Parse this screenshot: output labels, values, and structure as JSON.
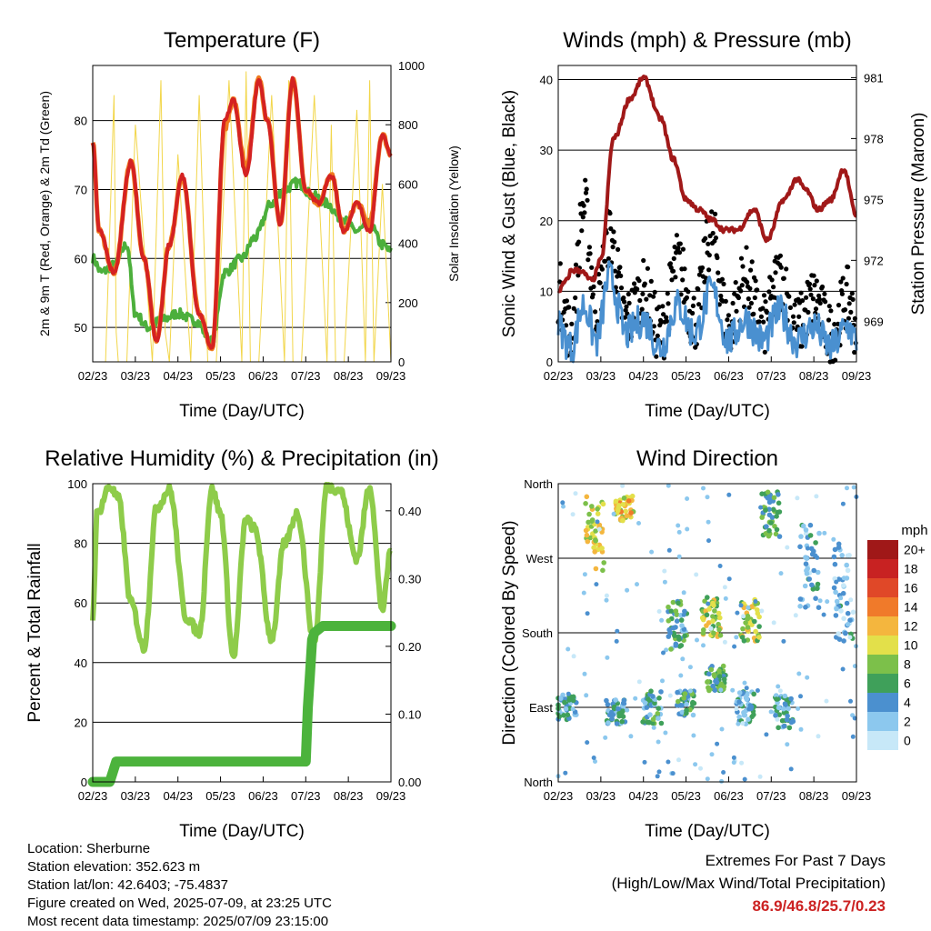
{
  "colors": {
    "temp2m": "#d42222",
    "temp9m": "#f07a1e",
    "dewpoint": "#4caf3c",
    "solar": "#f2d64a",
    "wind": "#4a90d0",
    "gust": "#000000",
    "pressure": "#a01818",
    "rh": "#8ecc4a",
    "precip": "#4cb33c"
  },
  "chart_data": [
    {
      "type": "line",
      "title": "Temperature (F)",
      "xlabel": "Time (Day/UTC)",
      "ylabel": "2m & 9m T (Red, Orange) & 2m Td (Green)",
      "ylabel_right": "Solar Insolation (Yellow)",
      "x_ticks": [
        "02/23",
        "03/23",
        "04/23",
        "05/23",
        "06/23",
        "07/23",
        "08/23",
        "09/23"
      ],
      "y_ticks": [
        50,
        60,
        70,
        80
      ],
      "y_right_ticks": [
        0,
        200,
        400,
        600,
        800,
        1000
      ],
      "ylim": [
        45,
        88
      ],
      "ylim_right": [
        0,
        1000
      ],
      "series": [
        {
          "key": "temp2m",
          "x": [
            0,
            0.15,
            0.5,
            0.9,
            1.2,
            1.5,
            1.8,
            2.1,
            2.5,
            2.8,
            3.1,
            3.3,
            3.6,
            3.9,
            4.1,
            4.4,
            4.7,
            5.0,
            5.3,
            5.6,
            5.9,
            6.2,
            6.5,
            6.8,
            7.0
          ],
          "y": [
            77,
            64,
            58,
            74,
            60,
            48,
            62,
            72,
            52,
            47,
            80,
            83,
            72,
            86,
            80,
            65,
            86,
            70,
            68,
            72,
            64,
            68,
            64,
            78,
            75
          ]
        },
        {
          "key": "temp9m",
          "x": [
            0,
            0.15,
            0.5,
            0.9,
            1.2,
            1.5,
            1.8,
            2.1,
            2.5,
            2.8,
            3.1,
            3.3,
            3.6,
            3.9,
            4.1,
            4.4,
            4.7,
            5.0,
            5.3,
            5.6,
            5.9,
            6.2,
            6.5,
            6.8,
            7.0
          ],
          "y": [
            77,
            64,
            58,
            74,
            60,
            48,
            62,
            72,
            52,
            47,
            79,
            83,
            73,
            86,
            80,
            65,
            86,
            70,
            68,
            72,
            64,
            68,
            65,
            78,
            75
          ]
        },
        {
          "key": "dewpoint",
          "x": [
            0,
            0.2,
            0.5,
            0.8,
            1.0,
            1.3,
            1.6,
            2.0,
            2.4,
            2.8,
            3.1,
            3.5,
            3.8,
            4.2,
            4.5,
            4.8,
            5.2,
            5.5,
            5.8,
            6.2,
            6.5,
            6.8,
            7.0
          ],
          "y": [
            60,
            58,
            59,
            62,
            52,
            50,
            51,
            52,
            51,
            48,
            58,
            60,
            63,
            68,
            70,
            71,
            69,
            68,
            66,
            64,
            65,
            62,
            61
          ]
        },
        {
          "key": "solar",
          "x": [
            0,
            0.3,
            0.5,
            0.55,
            0.6,
            0.8,
            1.0,
            1.4,
            1.6,
            1.7,
            1.8,
            2.0,
            2.3,
            2.5,
            2.7,
            2.9,
            3.2,
            3.5,
            3.6,
            3.7,
            3.9,
            4.2,
            4.5,
            4.6,
            4.7,
            4.9,
            5.2,
            5.5,
            5.6,
            5.7,
            5.9,
            6.2,
            6.4,
            6.5,
            6.6,
            6.8,
            7.0
          ],
          "y": [
            0,
            0,
            900,
            100,
            0,
            0,
            800,
            0,
            950,
            100,
            0,
            700,
            0,
            900,
            0,
            0,
            950,
            0,
            980,
            0,
            0,
            900,
            0,
            950,
            0,
            0,
            900,
            0,
            800,
            0,
            0,
            850,
            0,
            950,
            0,
            600,
            0
          ]
        }
      ]
    },
    {
      "type": "line",
      "title": "Winds (mph) & Pressure (mb)",
      "xlabel": "Time (Day/UTC)",
      "ylabel": "Sonic Wind & Gust (Blue, Black)",
      "ylabel_right": "Station Pressure (Maroon)",
      "x_ticks": [
        "02/23",
        "03/23",
        "04/23",
        "05/23",
        "06/23",
        "07/23",
        "08/23",
        "09/23"
      ],
      "y_ticks": [
        0,
        10,
        20,
        30,
        40
      ],
      "y_right_ticks": [
        969,
        972,
        975,
        978,
        981
      ],
      "ylim": [
        0,
        42
      ],
      "ylim_right": [
        967.0,
        981.6
      ],
      "series": [
        {
          "key": "wind",
          "x": [
            0,
            0.3,
            0.6,
            0.9,
            1.2,
            1.6,
            2.0,
            2.4,
            2.8,
            3.2,
            3.6,
            4.0,
            4.4,
            4.8,
            5.2,
            5.6,
            6.0,
            6.4,
            6.8,
            7.0
          ],
          "y": [
            5,
            2,
            8,
            3,
            12,
            4,
            6,
            2,
            8,
            4,
            10,
            3,
            6,
            3,
            7,
            3,
            5,
            2,
            5,
            3
          ]
        },
        {
          "key": "gust",
          "x": [
            0,
            0.3,
            0.6,
            0.9,
            1.2,
            1.6,
            2.0,
            2.4,
            2.8,
            3.2,
            3.6,
            4.0,
            4.4,
            4.8,
            5.2,
            5.6,
            6.0,
            6.4,
            6.8,
            7.0
          ],
          "y": [
            10,
            4,
            22,
            8,
            18,
            6,
            10,
            4,
            14,
            6,
            18,
            5,
            12,
            5,
            12,
            5,
            9,
            4,
            9,
            5
          ]
        },
        {
          "key": "pressure",
          "x": [
            0,
            0.2,
            0.3,
            0.5,
            0.8,
            1.0,
            1.3,
            1.7,
            2.0,
            2.4,
            2.7,
            3.0,
            3.3,
            3.6,
            3.9,
            4.2,
            4.6,
            4.9,
            5.3,
            5.6,
            5.8,
            6.1,
            6.4,
            6.7,
            7.0
          ],
          "y": [
            970.5,
            971,
            971.5,
            971.5,
            971,
            972,
            978,
            980,
            981,
            979,
            977,
            975,
            974.5,
            974,
            973.5,
            973.5,
            974.5,
            973,
            975,
            976,
            975.5,
            974.5,
            975,
            976.5,
            974.2
          ]
        }
      ]
    },
    {
      "type": "line",
      "title": "Relative Humidity (%) & Precipitation (in)",
      "xlabel": "Time (Day/UTC)",
      "ylabel": "Percent & Total Rainfall",
      "x_ticks": [
        "02/23",
        "03/23",
        "04/23",
        "05/23",
        "06/23",
        "07/23",
        "08/23",
        "09/23"
      ],
      "y_ticks": [
        0,
        20,
        40,
        60,
        80,
        100
      ],
      "y_right_ticks": [
        "0.00",
        "0.10",
        "0.20",
        "0.30",
        "0.40"
      ],
      "ylim": [
        0,
        100
      ],
      "ylim_right": [
        0,
        0.44
      ],
      "series": [
        {
          "key": "rh",
          "x": [
            0,
            0.1,
            0.4,
            0.6,
            0.9,
            1.2,
            1.5,
            1.8,
            2.2,
            2.5,
            2.8,
            3.0,
            3.3,
            3.6,
            3.8,
            4.2,
            4.5,
            4.8,
            5.2,
            5.5,
            5.8,
            6.2,
            6.5,
            6.8,
            7.0
          ],
          "y": [
            55,
            90,
            99,
            95,
            60,
            45,
            92,
            98,
            55,
            50,
            98,
            90,
            42,
            88,
            85,
            48,
            80,
            90,
            47,
            99,
            98,
            75,
            99,
            58,
            78
          ]
        },
        {
          "key": "precip",
          "x": [
            0,
            0.4,
            0.55,
            2.5,
            5.0,
            5.05,
            5.1,
            5.15,
            5.2,
            5.4,
            7.0
          ],
          "y": [
            0,
            0,
            0.03,
            0.03,
            0.03,
            0.11,
            0.16,
            0.21,
            0.22,
            0.23,
            0.23
          ]
        }
      ]
    },
    {
      "type": "scatter",
      "title": "Wind Direction",
      "xlabel": "Time (Day/UTC)",
      "ylabel": "Direction (Colored By Speed)",
      "x_ticks": [
        "02/23",
        "03/23",
        "04/23",
        "05/23",
        "06/23",
        "07/23",
        "08/23",
        "09/23"
      ],
      "y_ticks": [
        "North",
        "East",
        "South",
        "West",
        "North"
      ],
      "ylim": [
        0,
        360
      ],
      "legend": {
        "title": "mph",
        "labels": [
          "0",
          "2",
          "4",
          "6",
          "8",
          "10",
          "12",
          "14",
          "16",
          "18",
          "20+"
        ],
        "colors": [
          "#c7e8f8",
          "#8cc8ee",
          "#4b90cf",
          "#3fa05a",
          "#7cc04a",
          "#e3e04a",
          "#f4b63e",
          "#f07a2a",
          "#e04828",
          "#c82222",
          "#a01818"
        ]
      },
      "clusters": [
        {
          "x": 0.2,
          "dir": 90,
          "spread": 15,
          "speed": 4
        },
        {
          "x": 0.85,
          "dir": 300,
          "spread": 45,
          "speed": 10
        },
        {
          "x": 1.55,
          "dir": 330,
          "spread": 15,
          "speed": 11
        },
        {
          "x": 1.35,
          "dir": 85,
          "spread": 15,
          "speed": 4
        },
        {
          "x": 2.2,
          "dir": 90,
          "spread": 20,
          "speed": 5
        },
        {
          "x": 2.8,
          "dir": 190,
          "spread": 30,
          "speed": 5
        },
        {
          "x": 3.6,
          "dir": 200,
          "spread": 25,
          "speed": 9
        },
        {
          "x": 4.5,
          "dir": 195,
          "spread": 25,
          "speed": 9
        },
        {
          "x": 3.0,
          "dir": 95,
          "spread": 15,
          "speed": 5
        },
        {
          "x": 3.7,
          "dir": 125,
          "spread": 15,
          "speed": 6
        },
        {
          "x": 4.4,
          "dir": 90,
          "spread": 20,
          "speed": 4
        },
        {
          "x": 5.0,
          "dir": 320,
          "spread": 30,
          "speed": 6
        },
        {
          "x": 5.9,
          "dir": 260,
          "spread": 50,
          "speed": 3
        },
        {
          "x": 6.7,
          "dir": 230,
          "spread": 60,
          "speed": 3
        },
        {
          "x": 5.3,
          "dir": 85,
          "spread": 20,
          "speed": 4
        }
      ]
    }
  ],
  "info": {
    "location": "Location: Sherburne",
    "elevation": "Station elevation: 352.623 m",
    "latlon": "Station lat/lon: 42.6403; -75.4837",
    "created": "Figure created on Wed, 2025-07-09, at 23:25 UTC",
    "recent": "Most recent data timestamp: 2025/07/09 23:15:00"
  },
  "extremes": {
    "line1": "Extremes For Past 7 Days",
    "line2": "(High/Low/Max Wind/Total Precipitation)",
    "values": "86.9/46.8/25.7/0.23"
  }
}
